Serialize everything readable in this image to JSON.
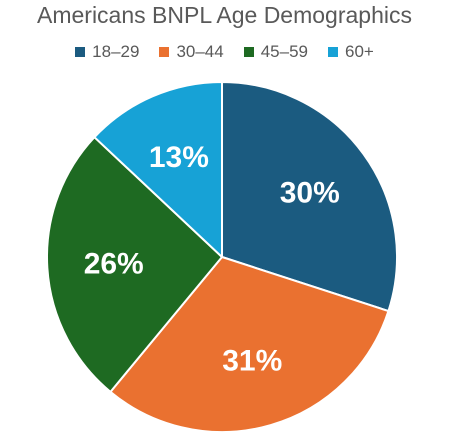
{
  "chart_data": {
    "type": "pie",
    "title": "Americans BNPL Age Demographics",
    "categories": [
      "18–29",
      "30–44",
      "45–59",
      "60+"
    ],
    "values": [
      30,
      31,
      26,
      13
    ],
    "labels": [
      "30%",
      "31%",
      "26%",
      "13%"
    ],
    "colors": [
      "#1b5b80",
      "#ea7130",
      "#1e6a22",
      "#17a2d6"
    ],
    "legend_position": "top",
    "start_angle": "12 o'clock, clockwise"
  }
}
